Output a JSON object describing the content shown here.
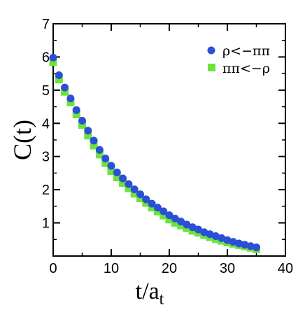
{
  "chart_data": {
    "type": "scatter",
    "xlabel": "t/a",
    "xlabel_subscript": "t",
    "ylabel": "C(t)",
    "xlim": [
      0,
      40
    ],
    "ylim": [
      0,
      7
    ],
    "xticks": [
      0,
      10,
      20,
      30,
      40
    ],
    "yticks": [
      1,
      2,
      3,
      4,
      5,
      6,
      7
    ],
    "grid": false,
    "legend_position": "top-right",
    "colors": {
      "series1": "#2b4fd6",
      "series2": "#6be33a"
    },
    "series": [
      {
        "name": "ρ<−ππ",
        "marker": "circle",
        "x": [
          0,
          1,
          2,
          3,
          4,
          5,
          6,
          7,
          8,
          9,
          10,
          11,
          12,
          13,
          14,
          15,
          16,
          17,
          18,
          19,
          20,
          21,
          22,
          23,
          24,
          25,
          26,
          27,
          28,
          29,
          30,
          31,
          32,
          33,
          34,
          35
        ],
        "y": [
          5.98,
          5.45,
          5.08,
          4.75,
          4.4,
          4.08,
          3.78,
          3.48,
          3.2,
          2.94,
          2.72,
          2.52,
          2.34,
          2.17,
          2.01,
          1.86,
          1.71,
          1.58,
          1.46,
          1.35,
          1.23,
          1.13,
          1.04,
          0.95,
          0.87,
          0.8,
          0.72,
          0.66,
          0.6,
          0.54,
          0.48,
          0.43,
          0.38,
          0.34,
          0.3,
          0.26
        ]
      },
      {
        "name": "ππ<−ρ",
        "marker": "square",
        "x": [
          0,
          1,
          2,
          3,
          4,
          5,
          6,
          7,
          8,
          9,
          10,
          11,
          12,
          13,
          14,
          15,
          16,
          17,
          18,
          19,
          20,
          21,
          22,
          23,
          24,
          25,
          26,
          27,
          28,
          29,
          30,
          31,
          32,
          33,
          34,
          35
        ],
        "y": [
          5.85,
          5.32,
          4.95,
          4.63,
          4.27,
          3.95,
          3.63,
          3.33,
          3.06,
          2.8,
          2.56,
          2.37,
          2.2,
          2.04,
          1.88,
          1.74,
          1.6,
          1.46,
          1.34,
          1.22,
          1.1,
          1.0,
          0.92,
          0.84,
          0.76,
          0.7,
          0.63,
          0.57,
          0.51,
          0.46,
          0.41,
          0.37,
          0.33,
          0.29,
          0.25,
          0.21
        ]
      }
    ]
  }
}
